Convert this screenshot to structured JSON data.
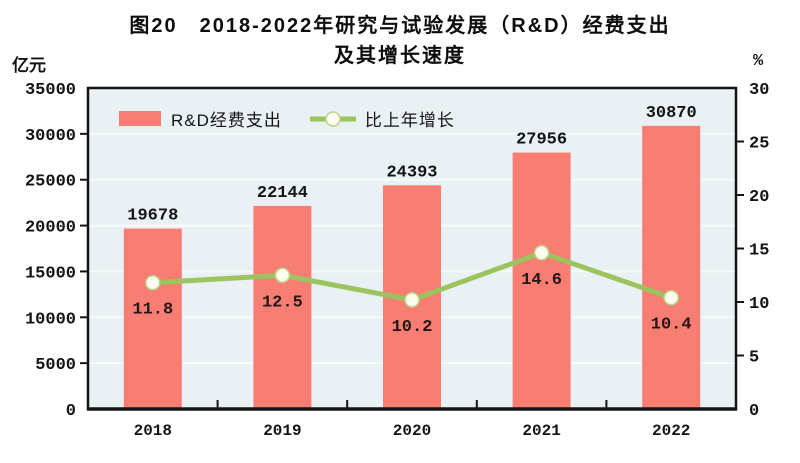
{
  "title": {
    "line1": "图20　2018-2022年研究与试验发展（R&D）经费支出",
    "line2": "及其增长速度"
  },
  "colors": {
    "bar": "#F87E74",
    "line": "#9CC45E",
    "marker_fill": "#FFFEF0",
    "marker_stroke": "#B9D489",
    "plot_bg": "#E9F1F4",
    "grid": "#F8FBFC",
    "axis": "#141414",
    "value_text": "#141414",
    "growth_text": "#241715"
  },
  "chart_data": {
    "type": "bar+line",
    "title": "图20 2018-2022年研究与试验发展（R&D）经费支出及其增长速度",
    "categories": [
      "2018",
      "2019",
      "2020",
      "2021",
      "2022"
    ],
    "series": [
      {
        "name": "R&D经费支出",
        "type": "bar",
        "axis": "left",
        "values": [
          19678,
          22144,
          24393,
          27956,
          30870
        ]
      },
      {
        "name": "比上年增长",
        "type": "line",
        "axis": "right",
        "values": [
          11.8,
          12.5,
          10.2,
          14.6,
          10.4
        ]
      }
    ],
    "left_axis": {
      "unit": "亿元",
      "min": 0,
      "max": 35000,
      "tick_step": 5000,
      "ticks": [
        0,
        5000,
        10000,
        15000,
        20000,
        25000,
        30000,
        35000
      ]
    },
    "right_axis": {
      "unit": "%",
      "min": 0,
      "max": 30,
      "tick_step": 5,
      "ticks": [
        0,
        5,
        10,
        15,
        20,
        25,
        30
      ]
    },
    "grid": "horizontal white lines at left-axis ticks",
    "legend_position": "top-left inside plot area"
  }
}
